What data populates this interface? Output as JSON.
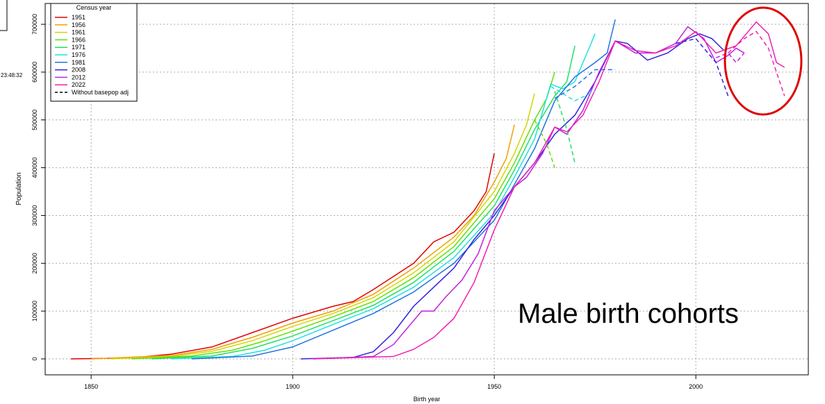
{
  "chart_data": {
    "type": "line",
    "x_label": "Birth year",
    "y_label": "Population",
    "annotation": "Male birth cohorts",
    "timestamp": "23:48:32",
    "legend_title": "Census year",
    "legend_position": "top-left",
    "legend_extra": {
      "label": "Without basepop adj",
      "color": "#000000",
      "dash": true
    },
    "grid": true,
    "xlim": [
      1838.6,
      2027.9
    ],
    "ylim": [
      -33400,
      743600
    ],
    "xticks": [
      1850,
      1900,
      1950,
      2000
    ],
    "yticks": [
      0,
      100000,
      200000,
      300000,
      400000,
      500000,
      600000,
      700000
    ],
    "series": [
      {
        "name": "1951",
        "color": "#e00000",
        "x": [
          1845,
          1860,
          1870,
          1880,
          1890,
          1900,
          1910,
          1915,
          1920,
          1930,
          1935,
          1940,
          1945,
          1948,
          1950
        ],
        "values": [
          0,
          2000,
          10000,
          25000,
          55000,
          85000,
          110000,
          120000,
          145000,
          200000,
          245000,
          265000,
          310000,
          350000,
          430000
        ]
      },
      {
        "name": "1956",
        "color": "#f0a000",
        "x": [
          1850,
          1870,
          1880,
          1890,
          1900,
          1910,
          1920,
          1930,
          1940,
          1945,
          1950,
          1953,
          1955
        ],
        "values": [
          0,
          7000,
          20000,
          45000,
          75000,
          100000,
          135000,
          190000,
          255000,
          300000,
          370000,
          420000,
          490000
        ]
      },
      {
        "name": "1961",
        "color": "#d4d400",
        "x": [
          1855,
          1870,
          1880,
          1890,
          1900,
          1910,
          1920,
          1930,
          1940,
          1950,
          1955,
          1958,
          1960
        ],
        "values": [
          0,
          5000,
          16000,
          38000,
          68000,
          95000,
          128000,
          180000,
          245000,
          350000,
          430000,
          490000,
          555000
        ]
      },
      {
        "name": "1966",
        "color": "#60e000",
        "x": [
          1860,
          1875,
          1885,
          1892,
          1900,
          1910,
          1920,
          1930,
          1940,
          1950,
          1955,
          1960,
          1963,
          1965
        ],
        "values": [
          0,
          6000,
          18000,
          35000,
          58000,
          88000,
          120000,
          170000,
          235000,
          335000,
          410000,
          500000,
          545000,
          600000
        ]
      },
      {
        "name": "1971",
        "color": "#20e060",
        "x": [
          1865,
          1880,
          1890,
          1900,
          1910,
          1920,
          1930,
          1940,
          1950,
          1955,
          1960,
          1965,
          1968,
          1970
        ],
        "values": [
          0,
          6000,
          22000,
          48000,
          80000,
          112000,
          160000,
          225000,
          320000,
          395000,
          480000,
          550000,
          580000,
          655000
        ]
      },
      {
        "name": "1976",
        "color": "#20e0e0",
        "x": [
          1870,
          1885,
          1893,
          1900,
          1910,
          1920,
          1930,
          1940,
          1950,
          1955,
          1960,
          1964,
          1967,
          1970,
          1975
        ],
        "values": [
          0,
          5000,
          18000,
          38000,
          72000,
          105000,
          150000,
          212000,
          305000,
          380000,
          460000,
          575000,
          565000,
          580000,
          680000
        ]
      },
      {
        "name": "1981",
        "color": "#2070e0",
        "x": [
          1875,
          1890,
          1900,
          1910,
          1920,
          1930,
          1940,
          1950,
          1955,
          1960,
          1965,
          1970,
          1975,
          1978,
          1980
        ],
        "values": [
          0,
          6000,
          25000,
          60000,
          95000,
          140000,
          200000,
          290000,
          365000,
          440000,
          540000,
          590000,
          620000,
          640000,
          710000
        ]
      },
      {
        "name": "2008",
        "color": "#3020e0",
        "x": [
          1902,
          1915,
          1920,
          1925,
          1930,
          1935,
          1940,
          1945,
          1950,
          1955,
          1960,
          1965,
          1970,
          1975,
          1980,
          1983,
          1988,
          1993,
          1998,
          2001,
          2004,
          2007
        ],
        "values": [
          0,
          3000,
          15000,
          55000,
          110000,
          150000,
          190000,
          250000,
          300000,
          360000,
          410000,
          470000,
          510000,
          580000,
          665000,
          660000,
          625000,
          640000,
          670000,
          680000,
          670000,
          645000
        ]
      },
      {
        "name": "2012",
        "color": "#c020e0",
        "x": [
          1905,
          1920,
          1925,
          1930,
          1932,
          1935,
          1938,
          1942,
          1946,
          1950,
          1955,
          1958,
          1962,
          1965,
          1968,
          1972,
          1976,
          1980,
          1985,
          1990,
          1995,
          1998,
          2002,
          2005,
          2008,
          2010,
          2012
        ],
        "values": [
          0,
          5000,
          30000,
          80000,
          100000,
          100000,
          130000,
          165000,
          220000,
          310000,
          360000,
          380000,
          430000,
          485000,
          470000,
          520000,
          600000,
          665000,
          640000,
          640000,
          660000,
          695000,
          670000,
          620000,
          635000,
          650000,
          640000
        ]
      },
      {
        "name": "2022",
        "color": "#f020b0",
        "x": [
          1905,
          1925,
          1930,
          1935,
          1940,
          1945,
          1950,
          1955,
          1960,
          1965,
          1968,
          1972,
          1976,
          1980,
          1985,
          1990,
          1995,
          2000,
          2005,
          2010,
          2015,
          2018,
          2020,
          2022
        ],
        "values": [
          0,
          5000,
          20000,
          45000,
          85000,
          160000,
          270000,
          360000,
          410000,
          485000,
          475000,
          510000,
          580000,
          665000,
          645000,
          640000,
          655000,
          685000,
          640000,
          655000,
          705000,
          680000,
          620000,
          610000
        ]
      },
      {
        "color": "#60e000",
        "dash": true,
        "x": [
          1960,
          1963,
          1965
        ],
        "values": [
          500000,
          450000,
          400000
        ]
      },
      {
        "color": "#20e060",
        "dash": true,
        "x": [
          1965,
          1968,
          1970
        ],
        "values": [
          560000,
          480000,
          410000
        ]
      },
      {
        "color": "#20e0e0",
        "dash": true,
        "x": [
          1964,
          1970,
          1975
        ],
        "values": [
          570000,
          540000,
          560000
        ]
      },
      {
        "color": "#2070e0",
        "dash": true,
        "x": [
          1965,
          1970,
          1975,
          1980
        ],
        "values": [
          545000,
          570000,
          605000,
          605000
        ]
      },
      {
        "color": "#3020e0",
        "dash": true,
        "x": [
          1995,
          2000,
          2005,
          2008
        ],
        "values": [
          660000,
          670000,
          620000,
          550000
        ]
      },
      {
        "color": "#c020e0",
        "dash": true,
        "x": [
          2005,
          2008,
          2010,
          2012
        ],
        "values": [
          630000,
          640000,
          620000,
          640000
        ]
      },
      {
        "color": "#f020b0",
        "dash": true,
        "x": [
          2008,
          2012,
          2015,
          2018,
          2022
        ],
        "values": [
          640000,
          670000,
          685000,
          650000,
          550000
        ]
      }
    ]
  }
}
